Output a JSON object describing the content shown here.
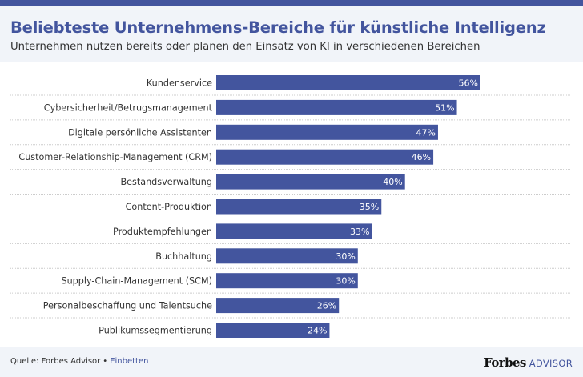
{
  "header": {
    "title": "Beliebteste Unternehmens-Bereiche für künstliche Intelligenz",
    "subtitle": "Unternehmen nutzen bereits oder planen den Einsatz von KI in verschiedenen Bereichen"
  },
  "footer": {
    "source_label": "Quelle: Forbes Advisor",
    "separator": "•",
    "embed_label": "Einbetten",
    "brand_main": "Forbes",
    "brand_sub": "ADVISOR"
  },
  "colors": {
    "accent": "#43559e",
    "header_bg": "#f1f4f9",
    "bar_label": "#ffffff",
    "category_text": "#333333",
    "separator": "#cccccc"
  },
  "chart_data": {
    "type": "bar",
    "orientation": "horizontal",
    "title": "Beliebteste Unternehmens-Bereiche für künstliche Intelligenz",
    "subtitle": "Unternehmen nutzen bereits oder planen den Einsatz von KI in verschiedenen Bereichen",
    "xlabel": "",
    "ylabel": "",
    "unit": "%",
    "xlim": [
      0,
      56
    ],
    "grid": false,
    "legend": "none",
    "categories": [
      "Kundenservice",
      "Cybersicherheit/Betrugsmanagement",
      "Digitale persönliche Assistenten",
      "Customer-Relationship-Management (CRM)",
      "Bestandsverwaltung",
      "Content-Produktion",
      "Produktempfehlungen",
      "Buchhaltung",
      "Supply-Chain-Management (SCM)",
      "Personalbeschaffung und Talentsuche",
      "Publikumssegmentierung"
    ],
    "values": [
      56,
      51,
      47,
      46,
      40,
      35,
      33,
      30,
      30,
      26,
      24
    ],
    "data_labels": [
      "56%",
      "51%",
      "47%",
      "46%",
      "40%",
      "35%",
      "33%",
      "30%",
      "30%",
      "26%",
      "24%"
    ]
  }
}
